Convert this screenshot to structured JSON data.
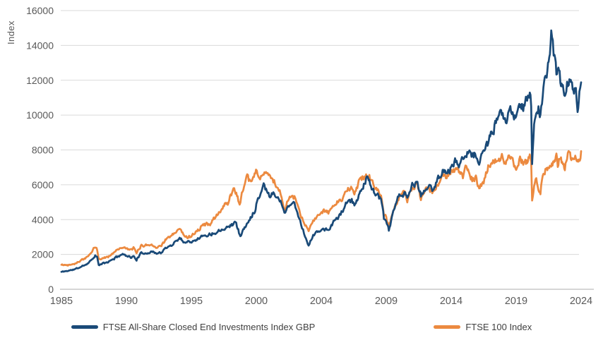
{
  "chart_data": {
    "type": "line",
    "title": "",
    "xlabel": "",
    "ylabel": "Index",
    "ylim": [
      0,
      16000
    ],
    "y_ticks": [
      0,
      2000,
      4000,
      6000,
      8000,
      10000,
      12000,
      14000,
      16000
    ],
    "x_tick_labels": [
      "1985",
      "1990",
      "1995",
      "2000",
      "2004",
      "2009",
      "2014",
      "2019",
      "2024"
    ],
    "x_tick_years": [
      1985,
      1990,
      1995,
      2000,
      2004,
      2009,
      2014,
      2019,
      2024
    ],
    "grid": "horizontal",
    "legend_position": "bottom",
    "colors": {
      "grid": "#dadada",
      "axis_line": "#bdbdbd",
      "tick_text": "#595959",
      "legend_text": "#404040",
      "background": "#ffffff"
    },
    "series": [
      {
        "name": "FTSE All-Share Closed End Investments Index GBP",
        "color": "#1a4a78",
        "anchors": [
          [
            1985.0,
            1000
          ],
          [
            1985.5,
            1060
          ],
          [
            1986.0,
            1140
          ],
          [
            1986.5,
            1280
          ],
          [
            1987.0,
            1480
          ],
          [
            1987.3,
            1680
          ],
          [
            1987.6,
            1950
          ],
          [
            1987.75,
            1820
          ],
          [
            1987.87,
            1380
          ],
          [
            1988.2,
            1480
          ],
          [
            1988.6,
            1560
          ],
          [
            1989.0,
            1740
          ],
          [
            1989.6,
            2000
          ],
          [
            1990.0,
            1960
          ],
          [
            1990.35,
            1840
          ],
          [
            1990.6,
            1870
          ],
          [
            1990.78,
            1700
          ],
          [
            1991.1,
            2040
          ],
          [
            1991.5,
            2090
          ],
          [
            1992.0,
            2150
          ],
          [
            1992.45,
            2070
          ],
          [
            1992.7,
            2120
          ],
          [
            1993.0,
            2320
          ],
          [
            1993.5,
            2560
          ],
          [
            1994.1,
            2950
          ],
          [
            1994.5,
            2700
          ],
          [
            1995.0,
            2760
          ],
          [
            1995.5,
            2930
          ],
          [
            1996.0,
            3090
          ],
          [
            1996.5,
            3160
          ],
          [
            1997.0,
            3320
          ],
          [
            1997.5,
            3520
          ],
          [
            1998.0,
            3660
          ],
          [
            1998.4,
            3870
          ],
          [
            1998.77,
            3050
          ],
          [
            1999.1,
            3520
          ],
          [
            1999.5,
            4000
          ],
          [
            1999.9,
            4600
          ],
          [
            2000.15,
            5300
          ],
          [
            2000.45,
            6080
          ],
          [
            2000.65,
            5650
          ],
          [
            2000.85,
            5350
          ],
          [
            2001.1,
            5560
          ],
          [
            2001.5,
            5050
          ],
          [
            2001.73,
            4350
          ],
          [
            2002.0,
            4870
          ],
          [
            2002.35,
            4920
          ],
          [
            2002.7,
            3950
          ],
          [
            2003.0,
            3050
          ],
          [
            2003.22,
            2520
          ],
          [
            2003.5,
            3080
          ],
          [
            2003.9,
            3380
          ],
          [
            2004.2,
            3470
          ],
          [
            2004.55,
            3330
          ],
          [
            2005.0,
            3940
          ],
          [
            2005.5,
            4310
          ],
          [
            2006.0,
            4980
          ],
          [
            2006.35,
            5060
          ],
          [
            2006.55,
            4790
          ],
          [
            2007.0,
            5620
          ],
          [
            2007.5,
            6380
          ],
          [
            2007.7,
            6180
          ],
          [
            2008.0,
            5680
          ],
          [
            2008.35,
            5380
          ],
          [
            2008.6,
            5140
          ],
          [
            2008.82,
            4080
          ],
          [
            2009.0,
            3820
          ],
          [
            2009.2,
            3400
          ],
          [
            2009.6,
            4550
          ],
          [
            2010.0,
            5350
          ],
          [
            2010.4,
            5550
          ],
          [
            2010.62,
            5150
          ],
          [
            2011.0,
            5980
          ],
          [
            2011.4,
            6100
          ],
          [
            2011.67,
            5350
          ],
          [
            2011.9,
            5600
          ],
          [
            2012.2,
            5900
          ],
          [
            2012.6,
            5720
          ],
          [
            2013.0,
            6380
          ],
          [
            2013.4,
            6880
          ],
          [
            2013.65,
            6620
          ],
          [
            2014.0,
            7050
          ],
          [
            2014.3,
            7320
          ],
          [
            2014.65,
            7080
          ],
          [
            2015.0,
            7680
          ],
          [
            2015.3,
            8120
          ],
          [
            2015.62,
            7550
          ],
          [
            2015.9,
            7720
          ],
          [
            2016.15,
            7260
          ],
          [
            2016.5,
            7880
          ],
          [
            2016.8,
            8320
          ],
          [
            2017.0,
            8780
          ],
          [
            2017.5,
            9580
          ],
          [
            2017.9,
            10060
          ],
          [
            2018.2,
            9680
          ],
          [
            2018.5,
            10340
          ],
          [
            2018.78,
            10080
          ],
          [
            2019.0,
            9640
          ],
          [
            2019.3,
            10580
          ],
          [
            2019.55,
            10340
          ],
          [
            2019.8,
            10920
          ],
          [
            2020.05,
            11480
          ],
          [
            2020.16,
            10700
          ],
          [
            2020.23,
            7400
          ],
          [
            2020.38,
            9300
          ],
          [
            2020.55,
            9950
          ],
          [
            2020.72,
            10250
          ],
          [
            2020.87,
            10020
          ],
          [
            2021.05,
            11200
          ],
          [
            2021.25,
            12100
          ],
          [
            2021.45,
            12900
          ],
          [
            2021.6,
            13700
          ],
          [
            2021.7,
            14600
          ],
          [
            2021.82,
            14050
          ],
          [
            2021.95,
            13350
          ],
          [
            2022.1,
            12300
          ],
          [
            2022.25,
            12680
          ],
          [
            2022.45,
            11580
          ],
          [
            2022.6,
            11980
          ],
          [
            2022.75,
            11020
          ],
          [
            2022.92,
            11560
          ],
          [
            2023.05,
            11980
          ],
          [
            2023.25,
            11620
          ],
          [
            2023.45,
            11280
          ],
          [
            2023.6,
            11660
          ],
          [
            2023.73,
            10480
          ],
          [
            2023.87,
            11250
          ],
          [
            2024.0,
            12000
          ]
        ]
      },
      {
        "name": "FTSE 100 Index",
        "color": "#ec8a40",
        "anchors": [
          [
            1985.0,
            1400
          ],
          [
            1985.5,
            1390
          ],
          [
            1986.0,
            1480
          ],
          [
            1986.5,
            1640
          ],
          [
            1987.0,
            1860
          ],
          [
            1987.3,
            2120
          ],
          [
            1987.6,
            2420
          ],
          [
            1987.75,
            2280
          ],
          [
            1987.87,
            1690
          ],
          [
            1988.2,
            1800
          ],
          [
            1988.6,
            1860
          ],
          [
            1989.0,
            2110
          ],
          [
            1989.6,
            2420
          ],
          [
            1990.0,
            2340
          ],
          [
            1990.35,
            2230
          ],
          [
            1990.55,
            2380
          ],
          [
            1990.78,
            2050
          ],
          [
            1991.1,
            2490
          ],
          [
            1991.5,
            2540
          ],
          [
            1992.0,
            2560
          ],
          [
            1992.45,
            2400
          ],
          [
            1992.7,
            2560
          ],
          [
            1993.0,
            2840
          ],
          [
            1993.5,
            3050
          ],
          [
            1994.1,
            3490
          ],
          [
            1994.5,
            3000
          ],
          [
            1995.0,
            3060
          ],
          [
            1995.5,
            3420
          ],
          [
            1996.0,
            3710
          ],
          [
            1996.5,
            3770
          ],
          [
            1997.0,
            4260
          ],
          [
            1997.4,
            4680
          ],
          [
            1997.62,
            4960
          ],
          [
            1997.8,
            4840
          ],
          [
            1998.3,
            5940
          ],
          [
            1998.72,
            4870
          ],
          [
            1999.0,
            5880
          ],
          [
            1999.3,
            6340
          ],
          [
            1999.6,
            6090
          ],
          [
            1999.98,
            6890
          ],
          [
            2000.18,
            6270
          ],
          [
            2000.4,
            6540
          ],
          [
            2000.65,
            6630
          ],
          [
            2000.9,
            6290
          ],
          [
            2001.1,
            6220
          ],
          [
            2001.5,
            5540
          ],
          [
            2001.73,
            4480
          ],
          [
            2002.0,
            5170
          ],
          [
            2002.35,
            5230
          ],
          [
            2002.7,
            4250
          ],
          [
            2003.0,
            3720
          ],
          [
            2003.22,
            3330
          ],
          [
            2003.5,
            4030
          ],
          [
            2003.9,
            4330
          ],
          [
            2004.2,
            4460
          ],
          [
            2004.55,
            4390
          ],
          [
            2005.0,
            4820
          ],
          [
            2005.5,
            5160
          ],
          [
            2006.0,
            5760
          ],
          [
            2006.35,
            5870
          ],
          [
            2006.55,
            5650
          ],
          [
            2007.0,
            6240
          ],
          [
            2007.5,
            6620
          ],
          [
            2007.7,
            6460
          ],
          [
            2008.0,
            5900
          ],
          [
            2008.35,
            5740
          ],
          [
            2008.6,
            5420
          ],
          [
            2008.82,
            4320
          ],
          [
            2009.0,
            4120
          ],
          [
            2009.2,
            3530
          ],
          [
            2009.6,
            4680
          ],
          [
            2010.0,
            5280
          ],
          [
            2010.4,
            5620
          ],
          [
            2010.62,
            5060
          ],
          [
            2011.0,
            5880
          ],
          [
            2011.4,
            5980
          ],
          [
            2011.67,
            5100
          ],
          [
            2011.9,
            5480
          ],
          [
            2012.2,
            5870
          ],
          [
            2012.6,
            5560
          ],
          [
            2013.0,
            6030
          ],
          [
            2013.35,
            6580
          ],
          [
            2013.65,
            6420
          ],
          [
            2014.0,
            6760
          ],
          [
            2014.3,
            6860
          ],
          [
            2014.65,
            6740
          ],
          [
            2014.9,
            6350
          ],
          [
            2015.1,
            6900
          ],
          [
            2015.3,
            7040
          ],
          [
            2015.62,
            6230
          ],
          [
            2015.9,
            6380
          ],
          [
            2016.15,
            5700
          ],
          [
            2016.5,
            6270
          ],
          [
            2016.8,
            6960
          ],
          [
            2017.0,
            7160
          ],
          [
            2017.5,
            7390
          ],
          [
            2017.9,
            7660
          ],
          [
            2018.2,
            7140
          ],
          [
            2018.4,
            7790
          ],
          [
            2018.78,
            7430
          ],
          [
            2019.0,
            6740
          ],
          [
            2019.3,
            7440
          ],
          [
            2019.55,
            7190
          ],
          [
            2019.8,
            7330
          ],
          [
            2020.05,
            7560
          ],
          [
            2020.16,
            7230
          ],
          [
            2020.23,
            5000
          ],
          [
            2020.38,
            6050
          ],
          [
            2020.55,
            6270
          ],
          [
            2020.72,
            5920
          ],
          [
            2020.87,
            5590
          ],
          [
            2021.05,
            6620
          ],
          [
            2021.3,
            6980
          ],
          [
            2021.55,
            7090
          ],
          [
            2021.8,
            7140
          ],
          [
            2022.0,
            7410
          ],
          [
            2022.1,
            7600
          ],
          [
            2022.2,
            6960
          ],
          [
            2022.4,
            7630
          ],
          [
            2022.55,
            7260
          ],
          [
            2022.75,
            6890
          ],
          [
            2022.92,
            7480
          ],
          [
            2023.1,
            7950
          ],
          [
            2023.3,
            7330
          ],
          [
            2023.5,
            7640
          ],
          [
            2023.65,
            7440
          ],
          [
            2023.8,
            7330
          ],
          [
            2023.95,
            7690
          ],
          [
            2024.0,
            7900
          ]
        ]
      }
    ]
  }
}
